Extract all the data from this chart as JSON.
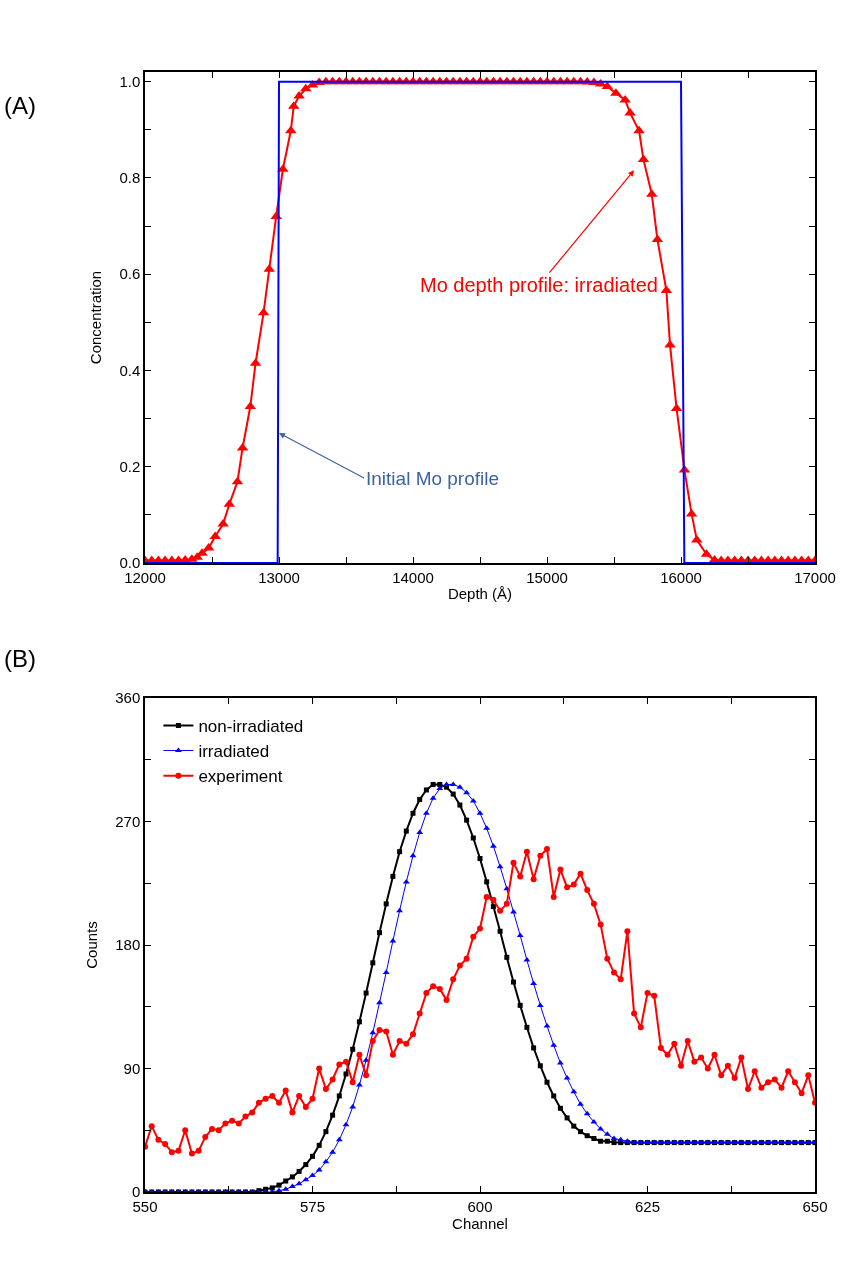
{
  "chart_data": [
    {
      "type": "line",
      "xlabel": "Depth (Å)",
      "ylabel": "Concentration",
      "xlim": [
        12000,
        17000
      ],
      "ylim": [
        0,
        1.02
      ],
      "xticks": [
        12000,
        {
          "value": 12500,
          "label": null
        },
        13000,
        {
          "value": 13500,
          "label": null
        },
        14000,
        {
          "value": 14500,
          "label": null
        },
        15000,
        {
          "value": 15500,
          "label": null
        },
        16000,
        {
          "value": 16500,
          "label": null
        },
        17000
      ],
      "yticks": [
        {
          "value": 0,
          "label": "0.0"
        },
        {
          "value": 0.1,
          "label": null
        },
        {
          "value": 0.2,
          "label": "0.2"
        },
        {
          "value": 0.3,
          "label": null
        },
        {
          "value": 0.4,
          "label": "0.4"
        },
        {
          "value": 0.5,
          "label": null
        },
        {
          "value": 0.6,
          "label": "0.6"
        },
        {
          "value": 0.7,
          "label": null
        },
        {
          "value": 0.8,
          "label": "0.8"
        },
        {
          "value": 0.9,
          "label": null
        },
        {
          "value": 1.0,
          "label": "1.0"
        }
      ],
      "grid": false,
      "legend": false,
      "series": [
        {
          "color": "#ff0000",
          "marker": "triangle",
          "x": [
            12000,
            12050,
            12100,
            12150,
            12200,
            12250,
            12300,
            12350,
            12390,
            12426,
            12475,
            12524,
            12583,
            12629,
            12690,
            12728,
            12786,
            12825,
            12885,
            12927,
            12979,
            13029,
            13088,
            13110,
            13150,
            13200,
            13250,
            13300,
            13350,
            13400,
            13450,
            13500,
            13550,
            13600,
            13650,
            13700,
            13750,
            13800,
            13850,
            13900,
            13950,
            14000,
            14050,
            14100,
            14150,
            14200,
            14250,
            14300,
            14350,
            14400,
            14450,
            14500,
            14550,
            14600,
            14650,
            14700,
            14750,
            14800,
            14850,
            14900,
            14950,
            15000,
            15050,
            15100,
            15150,
            15200,
            15250,
            15300,
            15350,
            15400,
            15450,
            15514,
            15583,
            15620,
            15687,
            15720,
            15782,
            15824,
            15891,
            15918,
            15967,
            16026,
            16079,
            16118,
            16190,
            16250,
            16300,
            16350,
            16400,
            16450,
            16500,
            16550,
            16600,
            16650,
            16700,
            16750,
            16800,
            16850,
            16900,
            16950,
            17000
          ],
          "values": [
            0.005,
            0.005,
            0.005,
            0.005,
            0.005,
            0.005,
            0.006,
            0.008,
            0.012,
            0.02,
            0.031,
            0.055,
            0.081,
            0.122,
            0.169,
            0.239,
            0.325,
            0.415,
            0.52,
            0.61,
            0.72,
            0.818,
            0.898,
            0.949,
            0.97,
            0.985,
            0.993,
            0.998,
            1.0,
            1.0,
            1.0,
            1.0,
            1.0,
            1.0,
            1.0,
            1.0,
            1.0,
            1.0,
            1.0,
            1.0,
            1.0,
            1.0,
            1.0,
            1.0,
            1.0,
            1.0,
            1.0,
            1.0,
            1.0,
            1.0,
            1.0,
            1.0,
            1.0,
            1.0,
            1.0,
            1.0,
            1.0,
            1.0,
            1.0,
            1.0,
            1.0,
            1.0,
            1.0,
            1.0,
            1.0,
            1.0,
            1.0,
            0.999,
            0.998,
            0.995,
            0.99,
            0.976,
            0.962,
            0.935,
            0.898,
            0.838,
            0.766,
            0.672,
            0.566,
            0.453,
            0.321,
            0.193,
            0.102,
            0.048,
            0.018,
            0.006,
            0.005,
            0.005,
            0.005,
            0.005,
            0.005,
            0.005,
            0.005,
            0.005,
            0.005,
            0.005,
            0.005,
            0.005,
            0.005,
            0.005,
            0.005
          ]
        },
        {
          "color": "#0000ff",
          "marker": "none",
          "x": [
            12000,
            12990,
            13000,
            16000,
            16025,
            17000
          ],
          "values": [
            0,
            0,
            1.0,
            1.0,
            0,
            0
          ]
        }
      ],
      "annotations": [
        "(A)",
        "Mo depth profile: irradiated",
        {
          "text": "Initial Mo profile",
          "x": 13000,
          "y": 0.27
        }
      ]
    },
    {
      "type": "line",
      "xlabel": "Channel",
      "ylabel": "Counts",
      "xlim": [
        550,
        650
      ],
      "ylim": [
        0,
        360
      ],
      "xticks": [
        550,
        {
          "value": 562.5,
          "label": null
        },
        575,
        {
          "value": 587.5,
          "label": null
        },
        600,
        {
          "value": 612.5,
          "label": null
        },
        625,
        {
          "value": 637.5,
          "label": null
        },
        650
      ],
      "yticks": [
        0,
        {
          "value": 45,
          "label": null
        },
        90,
        {
          "value": 135,
          "label": null
        },
        180,
        {
          "value": 225,
          "label": null
        },
        270,
        {
          "value": 315,
          "label": null
        },
        360
      ],
      "grid": false,
      "legend": "top left",
      "series": [
        {
          "name": "non-irradiated",
          "color": "#000000",
          "marker": "square",
          "x": [
            550,
            551,
            552,
            553,
            554,
            555,
            556,
            557,
            558,
            559,
            560,
            561,
            562,
            563,
            564,
            565,
            566,
            567,
            568,
            569,
            570,
            571,
            572,
            573,
            574,
            575,
            576,
            577,
            578,
            579,
            580,
            581,
            582,
            583,
            584,
            585,
            586,
            587,
            588,
            589,
            590,
            591,
            592,
            593,
            594,
            595,
            596,
            597,
            598,
            599,
            600,
            601,
            602,
            603,
            604,
            605,
            606,
            607,
            608,
            609,
            610,
            611,
            612,
            613,
            614,
            615,
            616,
            617,
            618,
            619,
            620,
            621,
            622,
            623,
            624,
            625,
            626,
            627,
            628,
            629,
            630,
            631,
            632,
            633,
            634,
            635,
            636,
            637,
            638,
            639,
            640,
            641,
            642,
            643,
            644,
            645,
            646,
            647,
            648,
            649,
            650
          ],
          "values": [
            0,
            0,
            0,
            0,
            0,
            0,
            0,
            0,
            0,
            0,
            0,
            0,
            0,
            0,
            0,
            0,
            0,
            1,
            2,
            3,
            5,
            8,
            11,
            15,
            20,
            26,
            34,
            44,
            56,
            70,
            86,
            104,
            124,
            145,
            167,
            189,
            210,
            230,
            248,
            263,
            276,
            286,
            293,
            297,
            297,
            295,
            290,
            282,
            271,
            258,
            243,
            226,
            208,
            190,
            171,
            153,
            136,
            120,
            105,
            92,
            80,
            70,
            61,
            54,
            48,
            44,
            41,
            39,
            37,
            37,
            36,
            36,
            36,
            36,
            36,
            36,
            36,
            36,
            36,
            36,
            36,
            36,
            36,
            36,
            36,
            36,
            36,
            36,
            36,
            36,
            36,
            36,
            36,
            36,
            36,
            36,
            36,
            36,
            36,
            36,
            36
          ]
        },
        {
          "name": "irradiated",
          "color": "#0000ff",
          "marker": "triangle",
          "x": [
            550,
            551,
            552,
            553,
            554,
            555,
            556,
            557,
            558,
            559,
            560,
            561,
            562,
            563,
            564,
            565,
            566,
            567,
            568,
            569,
            570,
            571,
            572,
            573,
            574,
            575,
            576,
            577,
            578,
            579,
            580,
            581,
            582,
            583,
            584,
            585,
            586,
            587,
            588,
            589,
            590,
            591,
            592,
            593,
            594,
            595,
            596,
            597,
            598,
            599,
            600,
            601,
            602,
            603,
            604,
            605,
            606,
            607,
            608,
            609,
            610,
            611,
            612,
            613,
            614,
            615,
            616,
            617,
            618,
            619,
            620,
            621,
            622,
            623,
            624,
            625,
            626,
            627,
            628,
            629,
            630,
            631,
            632,
            633,
            634,
            635,
            636,
            637,
            638,
            639,
            640,
            641,
            642,
            643,
            644,
            645,
            646,
            647,
            648,
            649,
            650
          ],
          "values": [
            0,
            0,
            0,
            0,
            0,
            0,
            0,
            0,
            0,
            0,
            0,
            0,
            0,
            0,
            0,
            0,
            0,
            0,
            0,
            0,
            1,
            2,
            4,
            6,
            9,
            12,
            16,
            22,
            29,
            38,
            49,
            62,
            78,
            96,
            116,
            138,
            160,
            183,
            205,
            226,
            245,
            262,
            276,
            287,
            294,
            297,
            297,
            295,
            291,
            285,
            276,
            265,
            252,
            237,
            221,
            204,
            187,
            169,
            152,
            136,
            121,
            107,
            94,
            83,
            73,
            64,
            57,
            51,
            46,
            42,
            39,
            38,
            37,
            36,
            36,
            36,
            36,
            36,
            36,
            36,
            36,
            36,
            36,
            36,
            36,
            36,
            36,
            36,
            36,
            36,
            36,
            36,
            36,
            36,
            36,
            36,
            36,
            36,
            36,
            36,
            36
          ]
        },
        {
          "name": "experiment",
          "color": "#ff0000",
          "marker": "circle",
          "x": [
            550,
            551,
            552,
            553,
            554,
            555,
            556,
            557,
            558,
            559,
            560,
            561,
            562,
            563,
            564,
            565,
            566,
            567,
            568,
            569,
            570,
            571,
            572,
            573,
            574,
            575,
            576,
            577,
            578,
            579,
            580,
            581,
            582,
            583,
            584,
            585,
            586,
            587,
            588,
            589,
            590,
            591,
            592,
            593,
            594,
            595,
            596,
            597,
            598,
            599,
            600,
            601,
            602,
            603,
            604,
            605,
            606,
            607,
            608,
            609,
            610,
            611,
            612,
            613,
            614,
            615,
            616,
            617,
            618,
            619,
            620,
            621,
            622,
            623,
            624,
            625,
            626,
            627,
            628,
            629,
            630,
            631,
            632,
            633,
            634,
            635,
            636,
            637,
            638,
            639,
            640,
            641,
            642,
            643,
            644,
            645,
            646,
            647,
            648,
            649,
            650
          ],
          "values": [
            33,
            48,
            38,
            35,
            29,
            30,
            45,
            28,
            30,
            40,
            46,
            45,
            50,
            52,
            50,
            55,
            58,
            65,
            68,
            70,
            65,
            74,
            58,
            70,
            62,
            68,
            90,
            75,
            82,
            93,
            95,
            80,
            100,
            85,
            110,
            118,
            117,
            100,
            110,
            108,
            115,
            130,
            145,
            150,
            148,
            140,
            155,
            165,
            170,
            186,
            192,
            215,
            213,
            205,
            210,
            240,
            230,
            248,
            228,
            245,
            250,
            215,
            235,
            222,
            224,
            232,
            220,
            210,
            195,
            170,
            160,
            155,
            190,
            130,
            120,
            145,
            143,
            105,
            100,
            108,
            92,
            110,
            95,
            98,
            90,
            100,
            85,
            92,
            83,
            98,
            75,
            88,
            76,
            80,
            82,
            76,
            88,
            80,
            72,
            85,
            65
          ]
        }
      ],
      "annotations": [
        "(B)"
      ]
    }
  ]
}
